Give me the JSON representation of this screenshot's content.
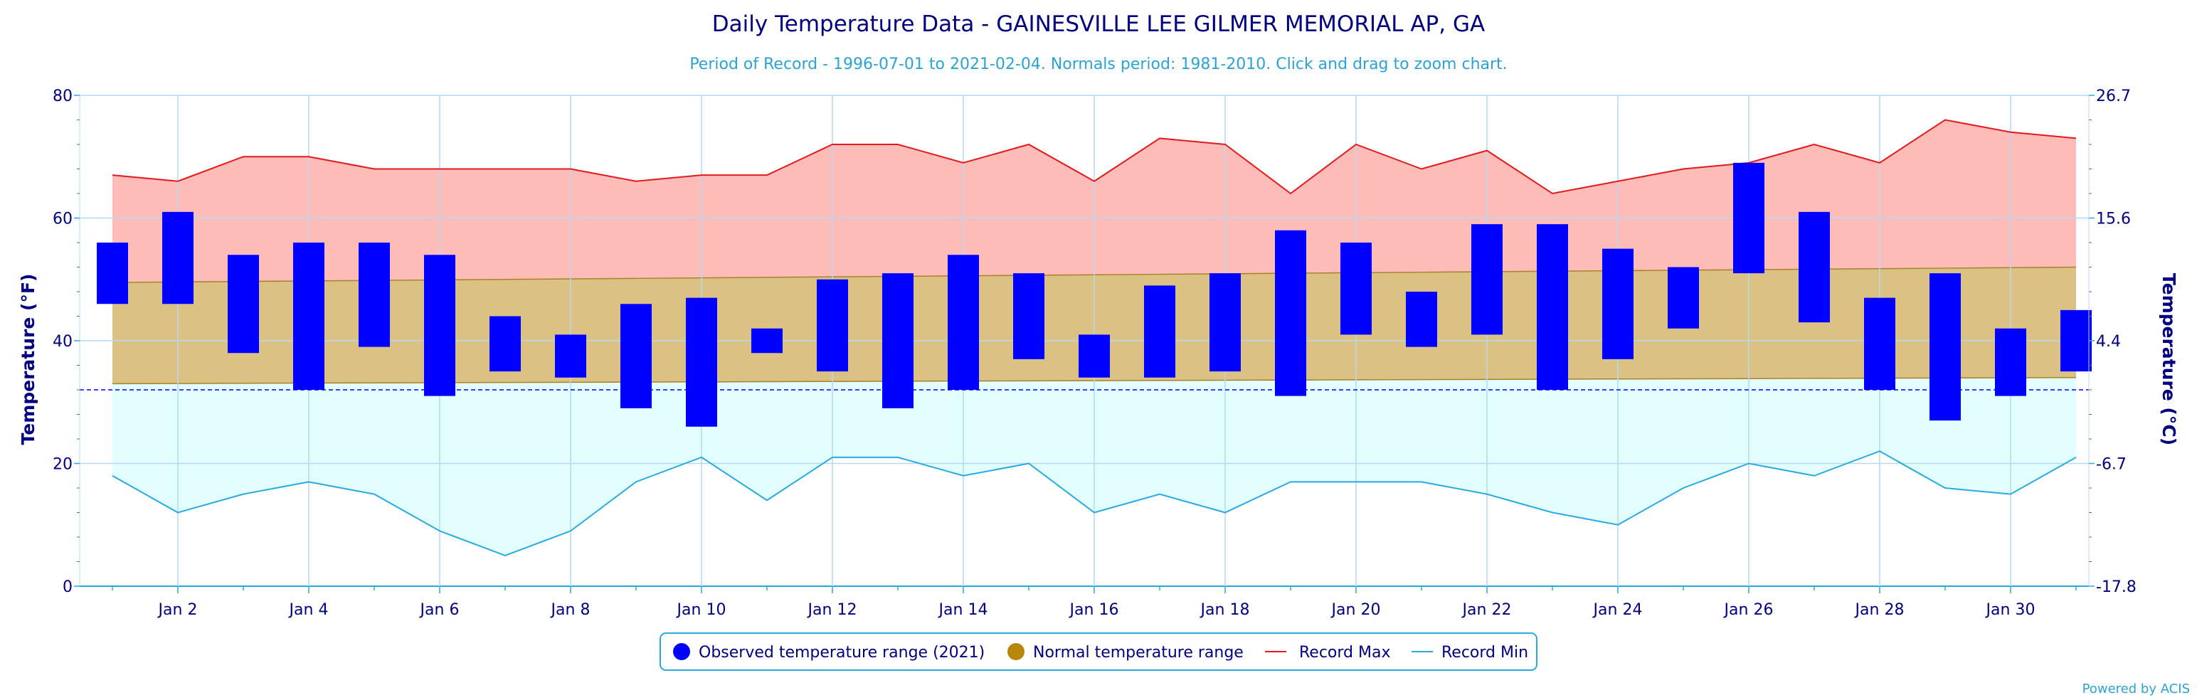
{
  "chart_data": {
    "type": "bar",
    "title": "Daily Temperature Data - GAINESVILLE LEE GILMER MEMORIAL AP, GA",
    "subtitle": "Period of Record - 1996-07-01 to 2021-02-04. Normals period: 1981-2010. Click and drag to zoom chart.",
    "ylabel": "Temperature (°F)",
    "ylabel_right": "Temperature (°C)",
    "ylim": [
      0,
      80
    ],
    "y_ticks": [
      "0",
      "20",
      "40",
      "60",
      "80"
    ],
    "y_ticks_right": [
      "-17.8",
      "-6.7",
      "4.4",
      "15.6",
      "26.7"
    ],
    "x_tick_labels": [
      "Jan 2",
      "Jan 4",
      "Jan 6",
      "Jan 8",
      "Jan 10",
      "Jan 12",
      "Jan 14",
      "Jan 16",
      "Jan 18",
      "Jan 20",
      "Jan 22",
      "Jan 24",
      "Jan 26",
      "Jan 28",
      "Jan 30"
    ],
    "days": [
      1,
      2,
      3,
      4,
      5,
      6,
      7,
      8,
      9,
      10,
      11,
      12,
      13,
      14,
      15,
      16,
      17,
      18,
      19,
      20,
      21,
      22,
      23,
      24,
      25,
      26,
      27,
      28,
      29,
      30,
      31
    ],
    "freezing_line": 32,
    "grid": true,
    "legend_position": "bottom-center",
    "series": [
      {
        "name": "Observed temperature range (2021)",
        "color": "#0000ff",
        "low": [
          46,
          46,
          38,
          32,
          39,
          31,
          35,
          34,
          29,
          26,
          38,
          35,
          29,
          32,
          37,
          34,
          34,
          35,
          31,
          41,
          39,
          41,
          32,
          37,
          42,
          51,
          43,
          32,
          27,
          31,
          35
        ],
        "high": [
          56,
          61,
          54,
          56,
          56,
          54,
          44,
          41,
          46,
          47,
          42,
          50,
          51,
          54,
          51,
          41,
          49,
          51,
          58,
          56,
          48,
          59,
          59,
          55,
          52,
          69,
          61,
          47,
          51,
          42,
          45
        ]
      },
      {
        "name": "Normal temperature range",
        "color": "#b8860b",
        "low_start": 33,
        "low_end": 34,
        "high_start": 49.5,
        "high_end": 52
      },
      {
        "name": "Record Max",
        "color": "#e31a1c",
        "values": [
          67,
          66,
          70,
          70,
          68,
          68,
          68,
          68,
          66,
          67,
          67,
          72,
          72,
          69,
          72,
          66,
          73,
          72,
          64,
          72,
          68,
          71,
          64,
          66,
          68,
          69,
          72,
          69,
          76,
          74,
          73
        ]
      },
      {
        "name": "Record Min",
        "color": "#29abe2",
        "values": [
          18,
          12,
          15,
          17,
          15,
          9,
          5,
          9,
          17,
          21,
          14,
          21,
          21,
          18,
          20,
          12,
          15,
          12,
          17,
          17,
          17,
          15,
          12,
          10,
          16,
          20,
          18,
          22,
          16,
          15,
          21
        ]
      }
    ]
  },
  "credit": "Powered by ACIS"
}
